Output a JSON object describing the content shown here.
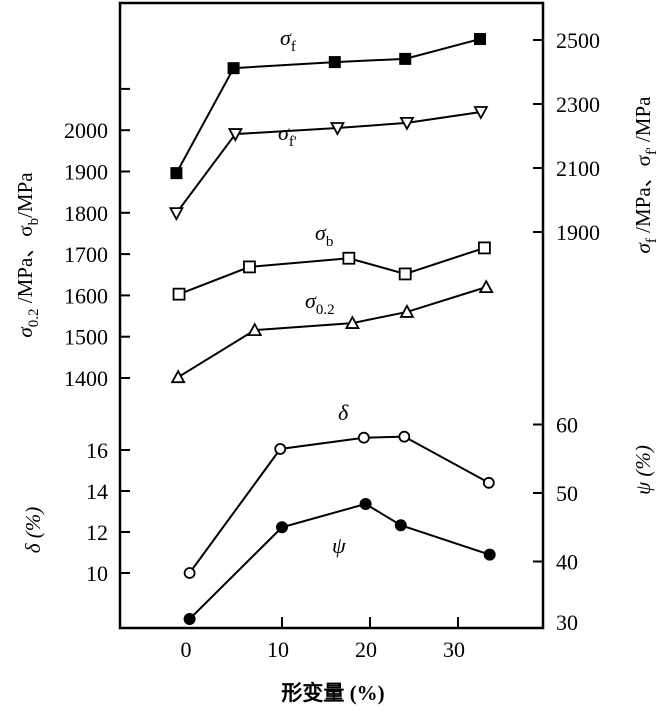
{
  "chart_data": {
    "type": "line",
    "xlabel": "形变量 (%)",
    "xlim": [
      -8,
      40
    ],
    "xticks": [
      "0",
      "10",
      "20",
      "30"
    ],
    "axes": {
      "left_upper": {
        "label": "σ0.2 /MPa、σb/MPa",
        "label_main": "σ",
        "label_parts": [
          "0.2",
          " /MPa、σ",
          "b",
          "/MPa"
        ],
        "ticks": [
          "1400",
          "1500",
          "1600",
          "1700",
          "1800",
          "1900",
          "2000"
        ]
      },
      "right_upper": {
        "label": "σf /MPa、σf' /MPa",
        "label_parts": [
          "σ",
          "f",
          " /MPa、σ",
          "f'",
          " /MPa"
        ],
        "ticks": [
          "1900",
          "2100",
          "2300",
          "2500"
        ]
      },
      "left_lower": {
        "label": "δ (%)",
        "ticks": [
          "10",
          "12",
          "14",
          "16"
        ]
      },
      "right_lower": {
        "label": "ψ (%)",
        "ticks": [
          "30",
          "40",
          "50",
          "60"
        ]
      }
    },
    "series": [
      {
        "name": "σf",
        "label_main": "σ",
        "label_sub": "f",
        "axis": "right_upper",
        "marker": "filled-square",
        "x": [
          -2,
          4.5,
          16,
          24,
          32.5
        ],
        "y": [
          2084,
          2412,
          2431,
          2441,
          2503
        ]
      },
      {
        "name": "σf'",
        "label_main": "σ",
        "label_sub": "f'",
        "axis": "right_upper",
        "marker": "open-down-triangle",
        "x": [
          -2,
          4.7,
          16.3,
          24.2,
          32.6
        ],
        "y": [
          1959,
          2206,
          2225,
          2241,
          2275
        ]
      },
      {
        "name": "σb",
        "label_main": "σ",
        "label_sub": "b",
        "axis": "left_upper",
        "marker": "open-square",
        "x": [
          -1.7,
          6.3,
          17.6,
          24,
          33
        ],
        "y": [
          1603,
          1669,
          1690,
          1652,
          1715
        ]
      },
      {
        "name": "σ0.2",
        "label_main": "σ",
        "label_sub": "0.2",
        "axis": "left_upper",
        "marker": "open-triangle",
        "x": [
          -1.8,
          6.9,
          18,
          24.2,
          33.2
        ],
        "y": [
          1402,
          1516,
          1533,
          1560,
          1620
        ]
      },
      {
        "name": "δ",
        "label_main": "δ",
        "label_sub": "",
        "axis": "left_lower",
        "marker": "open-circle",
        "x": [
          -0.5,
          9.8,
          19.3,
          23.9,
          33.5
        ],
        "y": [
          10.0,
          16.05,
          16.6,
          16.65,
          14.4
        ]
      },
      {
        "name": "ψ",
        "label_main": "ψ",
        "label_sub": "",
        "axis": "right_lower",
        "marker": "filled-circle",
        "x": [
          -0.5,
          10,
          19.5,
          23.5,
          33.6
        ],
        "y": [
          31.6,
          45,
          48.4,
          45.3,
          41
        ]
      }
    ],
    "grid": false
  }
}
